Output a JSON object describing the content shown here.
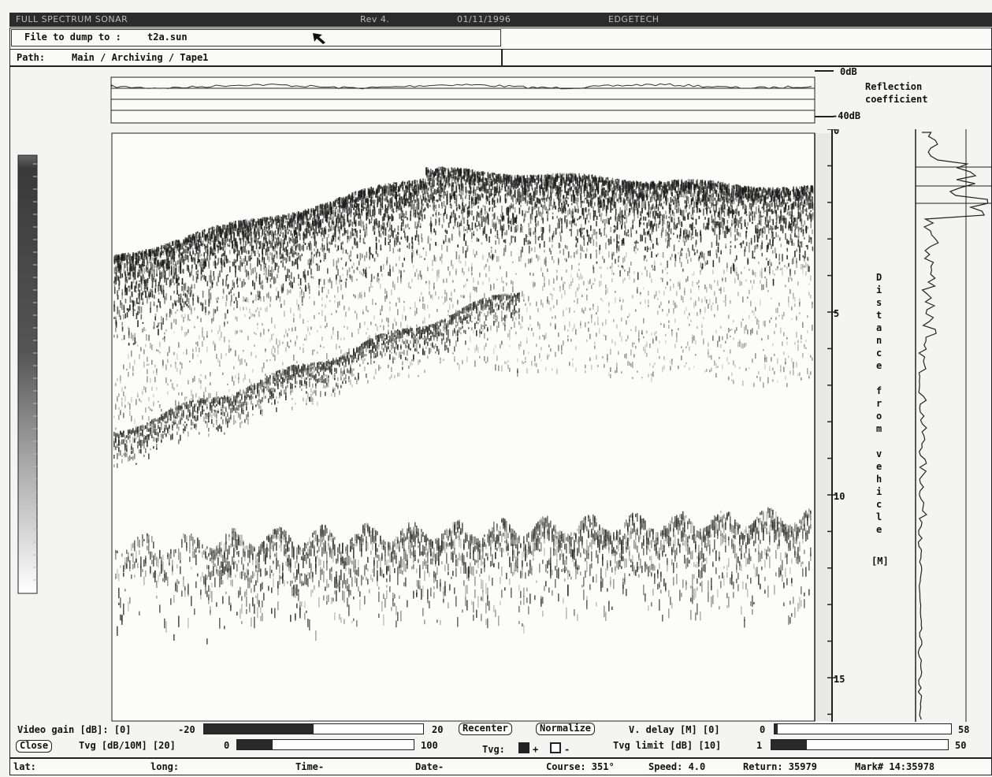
{
  "window": {
    "title": "FULL SPECTRUM SONAR",
    "rev": "Rev 4.",
    "date": "01/11/1996",
    "owner": "EDGETECH"
  },
  "dump": {
    "label": "File to dump to :",
    "filename": "t2a.sun"
  },
  "path": {
    "label": "Path:",
    "value": "Main / Archiving / Tape1"
  },
  "reflection": {
    "top_label": "0dB",
    "bottom_label": "-40dB",
    "title_line1": "Reflection",
    "title_line2": "coefficient"
  },
  "depth_axis": {
    "ticks": [
      "0",
      "5",
      "10",
      "15"
    ],
    "vertical_label": [
      "D",
      "i",
      "s",
      "t",
      "a",
      "n",
      "c",
      "e",
      "",
      "f",
      "r",
      "o",
      "m",
      "",
      "v",
      "e",
      "h",
      "i",
      "c",
      "l",
      "e"
    ],
    "unit": "[M]"
  },
  "controls": {
    "video_gain": {
      "label": "Video gain [dB]: [0]",
      "min": "-20",
      "max": "20",
      "fill": 0.5
    },
    "tvg": {
      "label": "Tvg [dB/10M] [20]",
      "min": "0",
      "max": "100",
      "fill": 0.2
    },
    "v_delay": {
      "label": "V. delay [M] [0]",
      "min": "0",
      "max": "58",
      "fill": 0.02
    },
    "tvg_limit": {
      "label": "Tvg limit [dB] [10]",
      "min": "1",
      "max": "50",
      "fill": 0.2
    },
    "recenter": "Recenter",
    "normalize": "Normalize",
    "close": "Close",
    "tvg_toggle_label": "Tvg:",
    "tvg_plus": "+",
    "tvg_minus": "-"
  },
  "status": {
    "lat": "lat:",
    "long": "long:",
    "time": "Time-",
    "date": "Date-",
    "course": "Course: 351°",
    "speed": "Speed: 4.0",
    "return": "Return: 35979",
    "mark": "Mark# 14:35978"
  },
  "colors": {
    "titlebar": "#2b2b2b",
    "background": "#f4f4f2",
    "ink": "#111111"
  }
}
